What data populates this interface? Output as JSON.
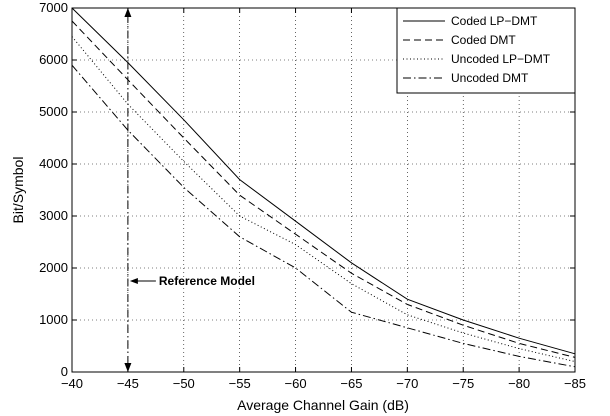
{
  "chart_data": {
    "type": "line",
    "title": "",
    "xlabel": "Average Channel Gain (dB)",
    "ylabel": "Bit/Symbol",
    "xlim": [
      -40,
      -85
    ],
    "ylim": [
      0,
      7000
    ],
    "x_reversed": true,
    "xticks": [
      -40,
      -45,
      -50,
      -55,
      -60,
      -65,
      -70,
      -75,
      -80,
      -85
    ],
    "yticks": [
      0,
      1000,
      2000,
      3000,
      4000,
      5000,
      6000,
      7000
    ],
    "grid": true,
    "legend_position": "top-right",
    "series": [
      {
        "name": "Coded LP−DMT",
        "style": "solid",
        "x": [
          -40,
          -45,
          -50,
          -55,
          -60,
          -65,
          -70,
          -75,
          -80,
          -85
        ],
        "y": [
          7000,
          5950,
          4850,
          3700,
          2900,
          2100,
          1400,
          1000,
          650,
          350
        ]
      },
      {
        "name": "Coded DMT",
        "style": "dashed",
        "x": [
          -40,
          -45,
          -50,
          -55,
          -60,
          -65,
          -70,
          -75,
          -80,
          -85
        ],
        "y": [
          6750,
          5620,
          4500,
          3400,
          2650,
          1900,
          1300,
          900,
          550,
          280
        ]
      },
      {
        "name": "Uncoded LP−DMT",
        "style": "dotted",
        "x": [
          -40,
          -45,
          -50,
          -55,
          -60,
          -65,
          -70,
          -75,
          -80,
          -85
        ],
        "y": [
          6450,
          5150,
          4050,
          3000,
          2450,
          1700,
          1100,
          750,
          450,
          200
        ]
      },
      {
        "name": "Uncoded DMT",
        "style": "dashdot",
        "x": [
          -40,
          -45,
          -50,
          -55,
          -60,
          -65,
          -70,
          -75,
          -80,
          -85
        ],
        "y": [
          5900,
          4650,
          3550,
          2600,
          2000,
          1150,
          850,
          550,
          300,
          100
        ]
      }
    ],
    "annotation": {
      "text": "Reference Model",
      "x": -45,
      "y": 1750
    }
  }
}
